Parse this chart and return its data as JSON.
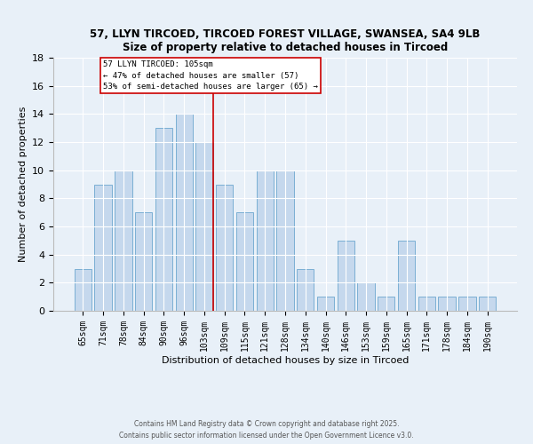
{
  "title": "57, LLYN TIRCOED, TIRCOED FOREST VILLAGE, SWANSEA, SA4 9LB",
  "subtitle": "Size of property relative to detached houses in Tircoed",
  "xlabel": "Distribution of detached houses by size in Tircoed",
  "ylabel": "Number of detached properties",
  "bar_labels": [
    "65sqm",
    "71sqm",
    "78sqm",
    "84sqm",
    "90sqm",
    "96sqm",
    "103sqm",
    "109sqm",
    "115sqm",
    "121sqm",
    "128sqm",
    "134sqm",
    "140sqm",
    "146sqm",
    "153sqm",
    "159sqm",
    "165sqm",
    "171sqm",
    "178sqm",
    "184sqm",
    "190sqm"
  ],
  "bar_values": [
    3,
    9,
    10,
    7,
    13,
    14,
    12,
    9,
    7,
    10,
    10,
    3,
    1,
    5,
    2,
    1,
    5,
    1,
    1,
    1,
    1
  ],
  "bar_color": "#c5d8ed",
  "bar_edge_color": "#7bafd4",
  "highlight_index": 6,
  "highlight_line_color": "#cc0000",
  "ylim": [
    0,
    18
  ],
  "yticks": [
    0,
    2,
    4,
    6,
    8,
    10,
    12,
    14,
    16,
    18
  ],
  "annotation_title": "57 LLYN TIRCOED: 105sqm",
  "annotation_line1": "← 47% of detached houses are smaller (57)",
  "annotation_line2": "53% of semi-detached houses are larger (65) →",
  "annotation_box_color": "#ffffff",
  "annotation_box_edge": "#cc0000",
  "background_color": "#e8f0f8",
  "footer1": "Contains HM Land Registry data © Crown copyright and database right 2025.",
  "footer2": "Contains public sector information licensed under the Open Government Licence v3.0."
}
